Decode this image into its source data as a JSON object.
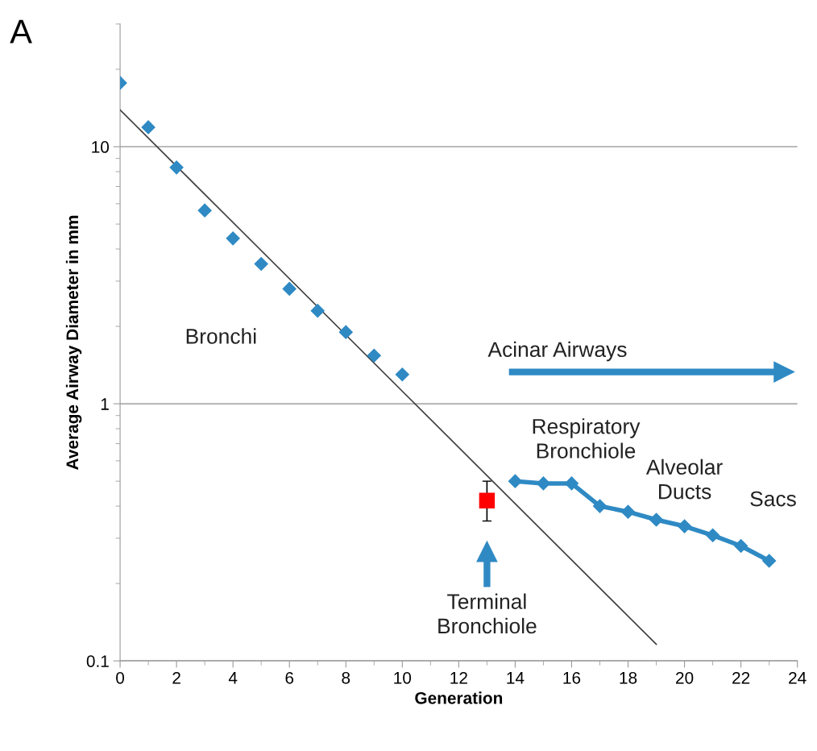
{
  "chart_data": {
    "type": "scatter",
    "title": "A",
    "xlabel": "Generation",
    "ylabel": "Average Airway Diameter in mm",
    "log": "y",
    "grid": "y",
    "xlim": [
      0,
      24
    ],
    "ylim": [
      0.1,
      30
    ],
    "xticks": [
      0,
      2,
      4,
      6,
      8,
      10,
      12,
      14,
      16,
      18,
      20,
      22,
      24
    ],
    "yticks": [
      0.1,
      1,
      10
    ],
    "series": [
      {
        "marker": "diamond",
        "color": "#2f8ac4",
        "x": [
          0,
          1,
          2,
          3,
          4,
          5,
          6,
          7,
          8,
          9,
          10
        ],
        "values": [
          17.7,
          11.9,
          8.3,
          5.65,
          4.4,
          3.5,
          2.8,
          2.3,
          1.9,
          1.54,
          1.3
        ]
      },
      {
        "type": "line",
        "marker": "diamond",
        "color": "#2f8ac4",
        "x": [
          14,
          15,
          16,
          17,
          18,
          19,
          20,
          21,
          22,
          23
        ],
        "values": [
          0.5,
          0.49,
          0.49,
          0.4,
          0.38,
          0.354,
          0.334,
          0.308,
          0.28,
          0.245
        ]
      },
      {
        "type": "scatter",
        "marker": "square",
        "color": "#ff0000",
        "x": [
          13
        ],
        "values": [
          0.42
        ],
        "errors": [
          [
            0.35,
            0.5
          ]
        ]
      },
      {
        "type": "line",
        "marker": "none",
        "color": "#404040",
        "x": [
          0,
          19
        ],
        "values": [
          13.9,
          0.116
        ]
      }
    ],
    "annotations": [
      "Bronchi",
      "Acinar Airways",
      "Respiratory\nBronchiole",
      "Alveolar\nDucts",
      "Sacs",
      "Terminal\nBronchiole"
    ]
  }
}
